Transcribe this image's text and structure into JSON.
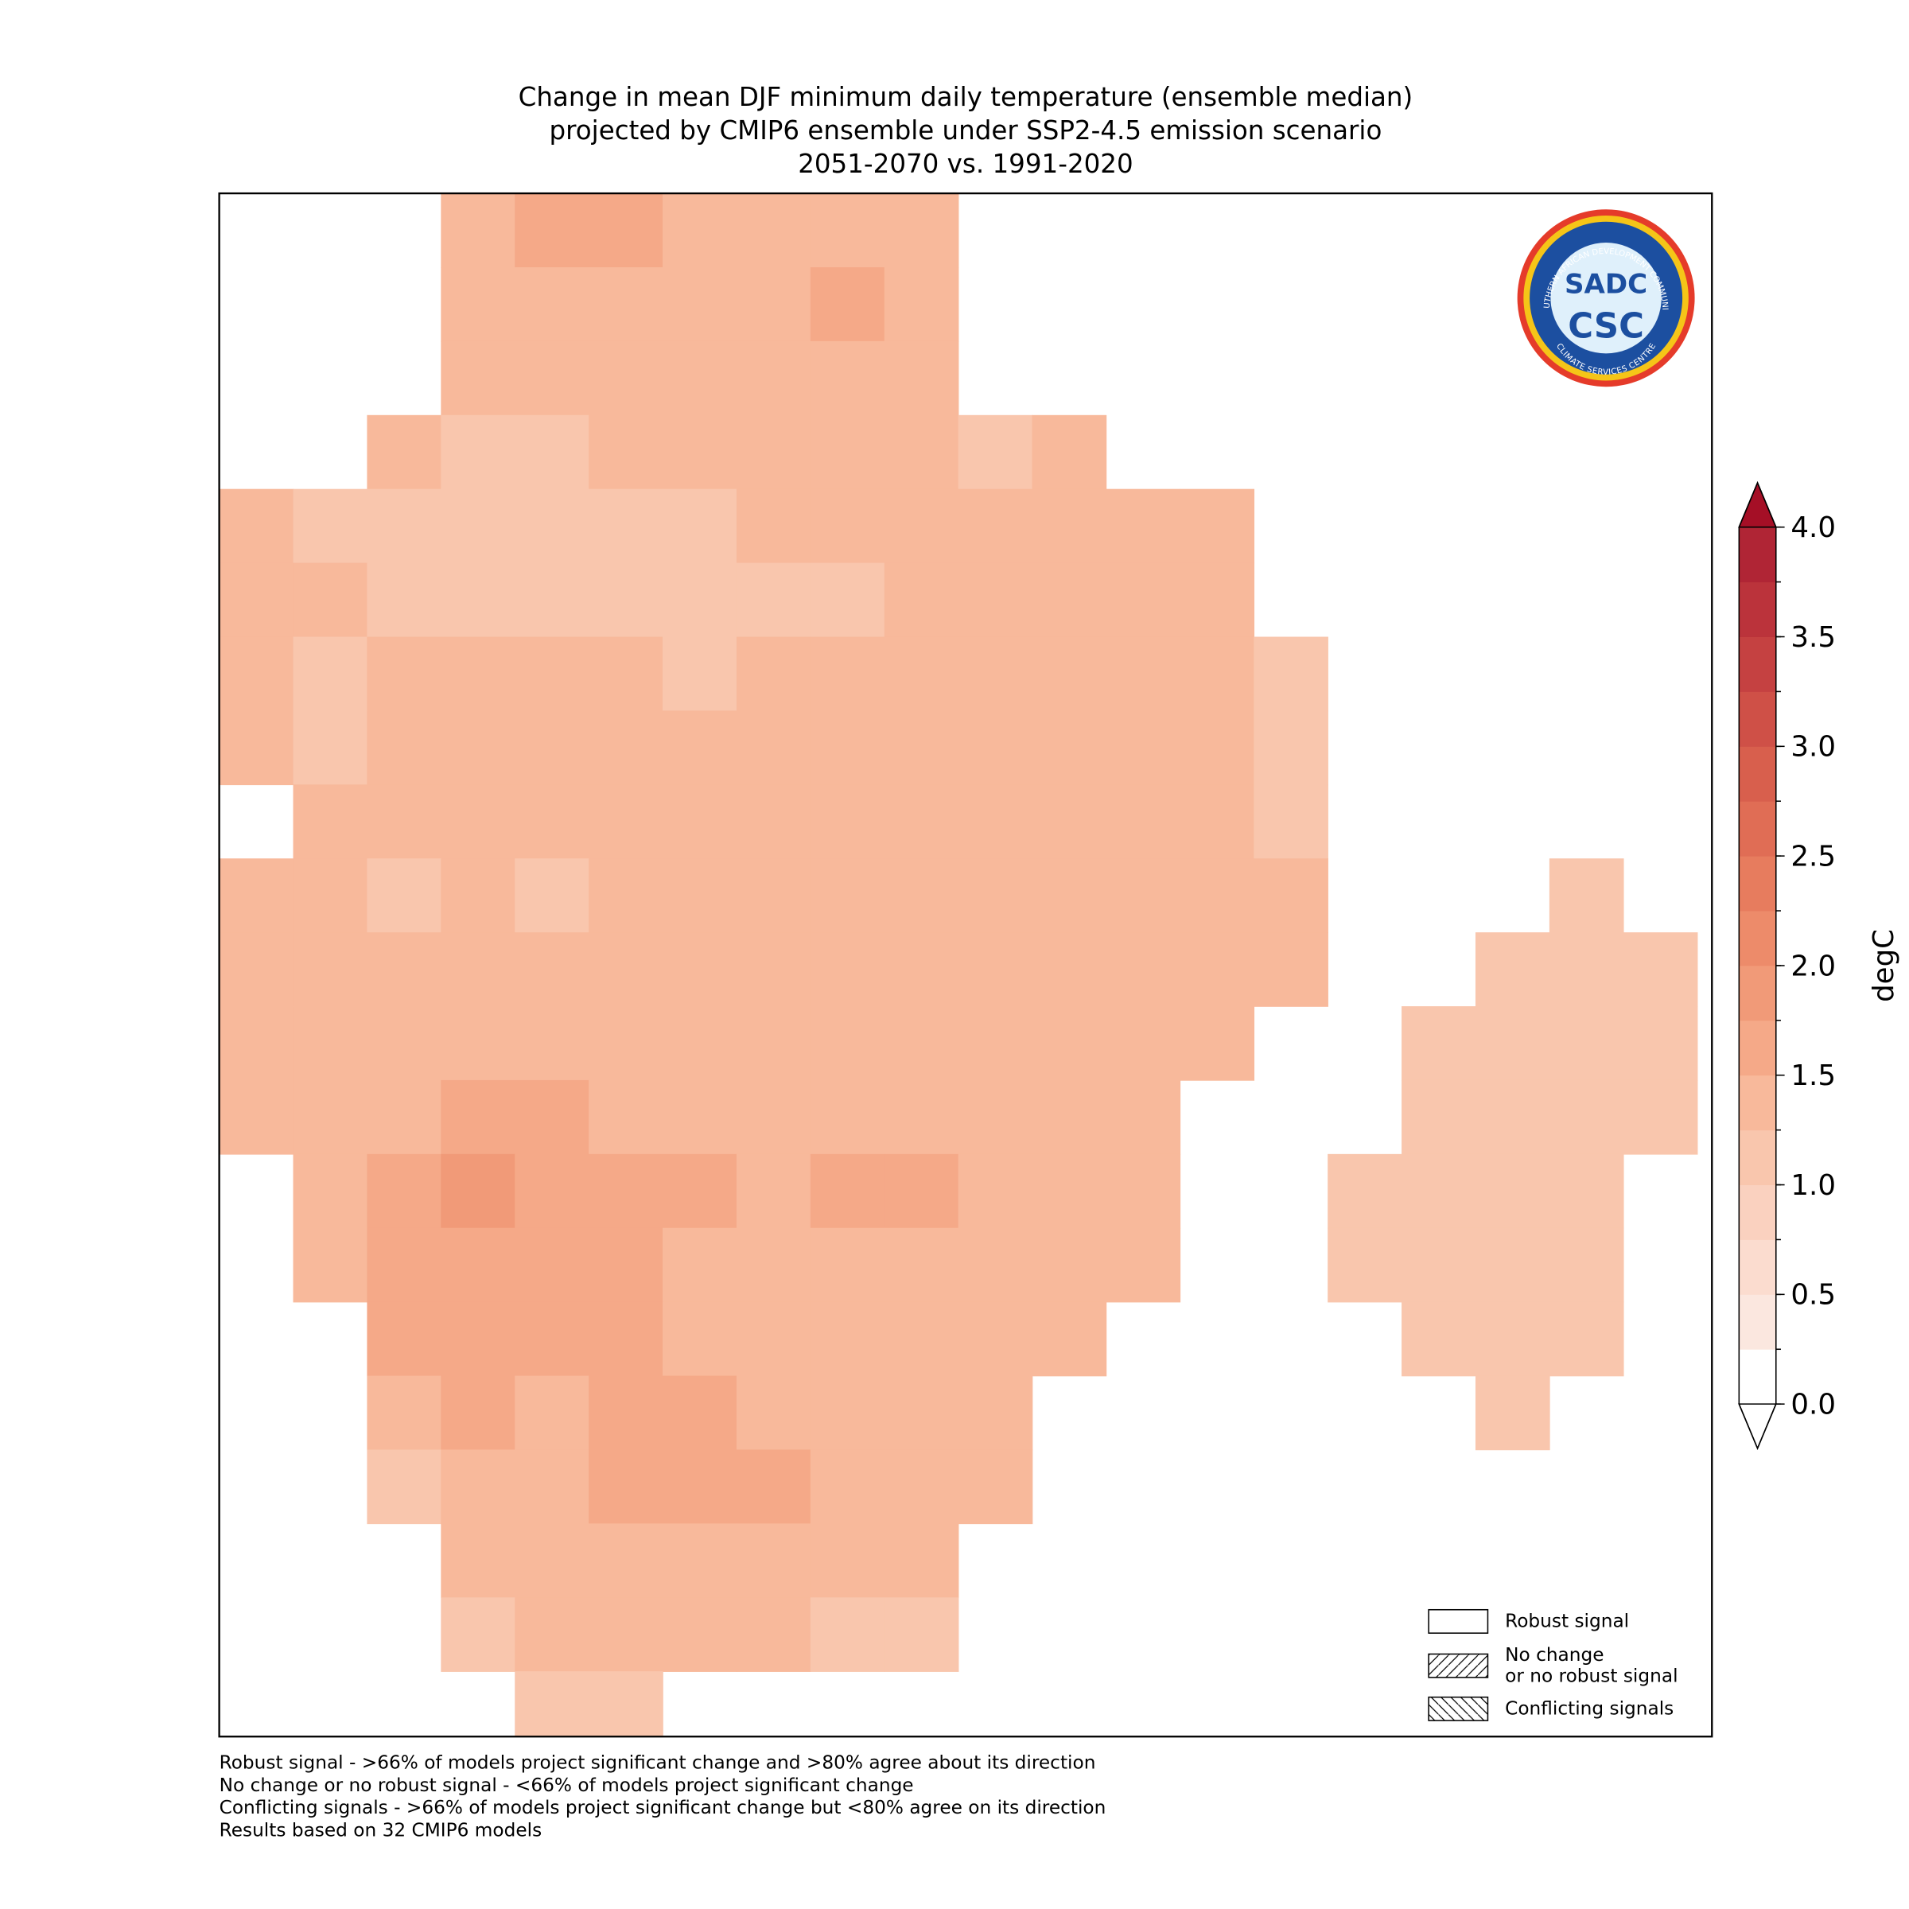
{
  "map": {
    "title": [
      "Change in mean DJF minimum daily temperature (ensemble median)",
      "projected by CMIP6 ensemble under SSP2-4.5 emission scenario",
      "2051-2070 vs. 1991-2020"
    ],
    "grid": {
      "values": [
        [
          null,
          null,
          null,
          1.35,
          1.6,
          1.6,
          1.35,
          1.35,
          1.35,
          1.35,
          null,
          null,
          null,
          null,
          null,
          null,
          null,
          null,
          null,
          null
        ],
        [
          null,
          null,
          null,
          1.35,
          1.35,
          1.35,
          1.35,
          1.35,
          1.6,
          1.35,
          null,
          null,
          null,
          null,
          null,
          null,
          null,
          null,
          null,
          null
        ],
        [
          null,
          null,
          null,
          1.35,
          1.35,
          1.35,
          1.35,
          1.35,
          1.35,
          1.35,
          null,
          null,
          null,
          null,
          null,
          null,
          null,
          null,
          null,
          null
        ],
        [
          null,
          null,
          1.35,
          1.15,
          1.15,
          1.35,
          1.35,
          1.35,
          1.35,
          1.35,
          1.15,
          1.35,
          null,
          null,
          null,
          null,
          null,
          null,
          null,
          null
        ],
        [
          1.35,
          1.15,
          1.15,
          1.15,
          1.15,
          1.15,
          1.15,
          1.35,
          1.35,
          1.35,
          1.35,
          1.35,
          1.35,
          1.35,
          null,
          null,
          null,
          null,
          null,
          null
        ],
        [
          1.35,
          1.35,
          1.15,
          1.15,
          1.15,
          1.15,
          1.15,
          1.15,
          1.15,
          1.35,
          1.35,
          1.35,
          1.35,
          1.35,
          null,
          null,
          null,
          null,
          null,
          null
        ],
        [
          1.35,
          1.15,
          1.35,
          1.35,
          1.35,
          1.35,
          1.15,
          1.35,
          1.35,
          1.35,
          1.35,
          1.35,
          1.35,
          1.35,
          1.15,
          null,
          null,
          null,
          null,
          null
        ],
        [
          1.35,
          1.15,
          1.35,
          1.35,
          1.35,
          1.35,
          1.35,
          1.35,
          1.35,
          1.35,
          1.35,
          1.35,
          1.35,
          1.35,
          1.15,
          null,
          null,
          null,
          null,
          null
        ],
        [
          null,
          1.35,
          1.35,
          1.35,
          1.35,
          1.35,
          1.35,
          1.35,
          1.35,
          1.35,
          1.35,
          1.35,
          1.35,
          1.35,
          1.15,
          null,
          null,
          null,
          null,
          null
        ],
        [
          1.35,
          1.35,
          1.15,
          1.35,
          1.15,
          1.35,
          1.35,
          1.35,
          1.35,
          1.35,
          1.35,
          1.35,
          1.35,
          1.35,
          1.35,
          null,
          null,
          null,
          1.15,
          null
        ],
        [
          1.35,
          1.35,
          1.35,
          1.35,
          1.35,
          1.35,
          1.35,
          1.35,
          1.35,
          1.35,
          1.35,
          1.35,
          1.35,
          1.35,
          1.35,
          null,
          null,
          1.15,
          1.15,
          1.15
        ],
        [
          1.35,
          1.35,
          1.35,
          1.35,
          1.35,
          1.35,
          1.35,
          1.35,
          1.35,
          1.35,
          1.35,
          1.35,
          1.35,
          1.35,
          null,
          null,
          1.15,
          1.15,
          1.15,
          1.15
        ],
        [
          1.35,
          1.35,
          1.35,
          1.6,
          1.6,
          1.35,
          1.35,
          1.35,
          1.35,
          1.35,
          1.35,
          1.35,
          1.35,
          null,
          null,
          null,
          1.15,
          1.15,
          1.15,
          1.15
        ],
        [
          null,
          1.35,
          1.6,
          1.8,
          1.6,
          1.6,
          1.6,
          1.35,
          1.6,
          1.6,
          1.35,
          1.35,
          1.35,
          null,
          null,
          1.15,
          1.15,
          1.15,
          1.15,
          null
        ],
        [
          null,
          1.35,
          1.6,
          1.6,
          1.6,
          1.6,
          1.35,
          1.35,
          1.35,
          1.35,
          1.35,
          1.35,
          1.35,
          null,
          null,
          1.15,
          1.15,
          1.15,
          1.15,
          null
        ],
        [
          null,
          null,
          1.6,
          1.6,
          1.6,
          1.6,
          1.35,
          1.35,
          1.35,
          1.35,
          1.35,
          1.35,
          null,
          null,
          null,
          null,
          1.15,
          1.15,
          1.15,
          null
        ],
        [
          null,
          null,
          1.35,
          1.6,
          1.35,
          1.6,
          1.6,
          1.35,
          1.35,
          1.35,
          1.35,
          null,
          null,
          null,
          null,
          null,
          null,
          1.15,
          null,
          null
        ],
        [
          null,
          null,
          1.15,
          1.35,
          1.35,
          1.6,
          1.6,
          1.6,
          1.35,
          1.35,
          1.35,
          null,
          null,
          null,
          null,
          null,
          null,
          null,
          null,
          null
        ],
        [
          null,
          null,
          null,
          1.35,
          1.35,
          1.35,
          1.35,
          1.35,
          1.35,
          1.35,
          null,
          null,
          null,
          null,
          null,
          null,
          null,
          null,
          null,
          null
        ],
        [
          null,
          null,
          null,
          1.15,
          1.35,
          1.35,
          1.35,
          1.35,
          1.15,
          1.15,
          null,
          null,
          null,
          null,
          null,
          null,
          null,
          null,
          null,
          null
        ],
        [
          null,
          null,
          null,
          null,
          1.15,
          1.15,
          null,
          null,
          null,
          null,
          null,
          null,
          null,
          null,
          null,
          null,
          null,
          null,
          null,
          null
        ]
      ]
    },
    "colorbar": {
      "label": "degC",
      "levels": [
        0,
        0.25,
        0.5,
        0.75,
        1,
        1.25,
        1.5,
        1.75,
        2,
        2.25,
        2.5,
        2.75,
        3,
        3.25,
        3.5,
        3.75,
        4
      ],
      "colors": [
        "#ffffff",
        "#fbe7df",
        "#fbdccf",
        "#fad1bf",
        "#f9c6ad",
        "#f8b99b",
        "#f5a988",
        "#f19a78",
        "#ed8b6a",
        "#e77c5e",
        "#e06d55",
        "#d85f4d",
        "#cf5047",
        "#c54141",
        "#bb333b",
        "#b02535"
      ],
      "extend_colors": [
        "#ffffff",
        "#a50f26"
      ],
      "ticks": [
        {
          "value": 0,
          "label": "0.0"
        },
        {
          "value": 0.5,
          "label": "0.5"
        },
        {
          "value": 1,
          "label": "1.0"
        },
        {
          "value": 1.5,
          "label": "1.5"
        },
        {
          "value": 2,
          "label": "2.0"
        },
        {
          "value": 2.5,
          "label": "2.5"
        },
        {
          "value": 3,
          "label": "3.0"
        },
        {
          "value": 3.5,
          "label": "3.5"
        },
        {
          "value": 4,
          "label": "4.0"
        }
      ]
    },
    "legend": [
      [
        "Robust signal"
      ],
      [
        "No change",
        "or no robust signal"
      ],
      [
        "Conflicting signals"
      ]
    ],
    "logo": {
      "ring_top": "SOUTHERN AFRICAN DEVELOPMENT COMMUNITY",
      "ring_bottom": "CLIMATE SERVICES CENTRE",
      "mark": "SADC",
      "name": "CSC"
    },
    "footnotes": [
      "Robust signal - >66% of models project significant change and >80% agree about its direction",
      "No change or no robust signal - <66% of models project significant change",
      "Conflicting signals - >66% of models project significant change but <80% agree on its direction",
      "Results based on 32 CMIP6 models"
    ]
  }
}
